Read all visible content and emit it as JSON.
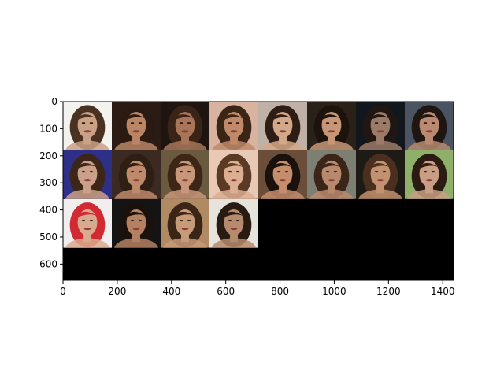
{
  "chart_data": {
    "type": "image-grid",
    "grid": {
      "rows": 3,
      "cols": 8,
      "filled_tiles": 20,
      "tile_size": 180
    },
    "image_extent": {
      "width": 1440,
      "height": 660
    },
    "xlim": [
      0,
      1440
    ],
    "ylim": [
      660,
      0
    ],
    "x_ticks": [
      0,
      200,
      400,
      600,
      800,
      1000,
      1200,
      1400
    ],
    "y_ticks": [
      0,
      100,
      200,
      300,
      400,
      500,
      600
    ],
    "tiles": [
      {
        "index": 0,
        "icon": "portrait-photo",
        "bg": "#f4f2ef",
        "hair": "#4a3222",
        "skin": "#c9a184"
      },
      {
        "index": 1,
        "icon": "portrait-photo",
        "bg": "#2b1b15",
        "hair": "#2a1a12",
        "skin": "#b98565"
      },
      {
        "index": 2,
        "icon": "portrait-photo",
        "bg": "#1e1410",
        "hair": "#3a2418",
        "skin": "#a87558"
      },
      {
        "index": 3,
        "icon": "portrait-photo",
        "bg": "#d8b4a0",
        "hair": "#3b2516",
        "skin": "#c08a68"
      },
      {
        "index": 4,
        "icon": "portrait-photo",
        "bg": "#bfb1a8",
        "hair": "#2e1d14",
        "skin": "#d3a888"
      },
      {
        "index": 5,
        "icon": "portrait-photo",
        "bg": "#2a2119",
        "hair": "#1d120c",
        "skin": "#c79677"
      },
      {
        "index": 6,
        "icon": "portrait-photo",
        "bg": "#12161d",
        "hair": "#201712",
        "skin": "#9c7a68"
      },
      {
        "index": 7,
        "icon": "portrait-photo",
        "bg": "#4a5462",
        "hair": "#1f1611",
        "skin": "#b98a70"
      },
      {
        "index": 8,
        "icon": "portrait-photo",
        "bg": "#2e2f86",
        "hair": "#3b2618",
        "skin": "#caa08a"
      },
      {
        "index": 9,
        "icon": "portrait-photo",
        "bg": "#3a2a22",
        "hair": "#2f1e14",
        "skin": "#bd8a6c"
      },
      {
        "index": 10,
        "icon": "portrait-photo",
        "bg": "#6a5a40",
        "hair": "#3d2616",
        "skin": "#c8977a"
      },
      {
        "index": 11,
        "icon": "portrait-photo",
        "bg": "#e7c9b6",
        "hair": "#5a3a24",
        "skin": "#dcae92"
      },
      {
        "index": 12,
        "icon": "portrait-photo",
        "bg": "#6b4e3a",
        "hair": "#1b110c",
        "skin": "#c48d6c"
      },
      {
        "index": 13,
        "icon": "portrait-photo",
        "bg": "#7d7f72",
        "hair": "#3a2518",
        "skin": "#b88a6d"
      },
      {
        "index": 14,
        "icon": "portrait-photo",
        "bg": "#1e1a16",
        "hair": "#4a2f1e",
        "skin": "#c2916f"
      },
      {
        "index": 15,
        "icon": "portrait-photo",
        "bg": "#8fb06a",
        "hair": "#2b1b12",
        "skin": "#c99e84"
      },
      {
        "index": 16,
        "icon": "portrait-photo",
        "bg": "#f0eeee",
        "hair": "#d22a33",
        "skin": "#d9ab8e"
      },
      {
        "index": 17,
        "icon": "portrait-photo",
        "bg": "#141414",
        "hair": "#1a110c",
        "skin": "#b38062"
      },
      {
        "index": 18,
        "icon": "portrait-photo",
        "bg": "#b08a62",
        "hair": "#3a2516",
        "skin": "#c79a78"
      },
      {
        "index": 19,
        "icon": "portrait-photo",
        "bg": "#e6e2dc",
        "hair": "#2a1b12",
        "skin": "#b68a6c"
      }
    ],
    "empty_fill": "#000000",
    "frame_color": "#000000",
    "grid_lines": false
  }
}
